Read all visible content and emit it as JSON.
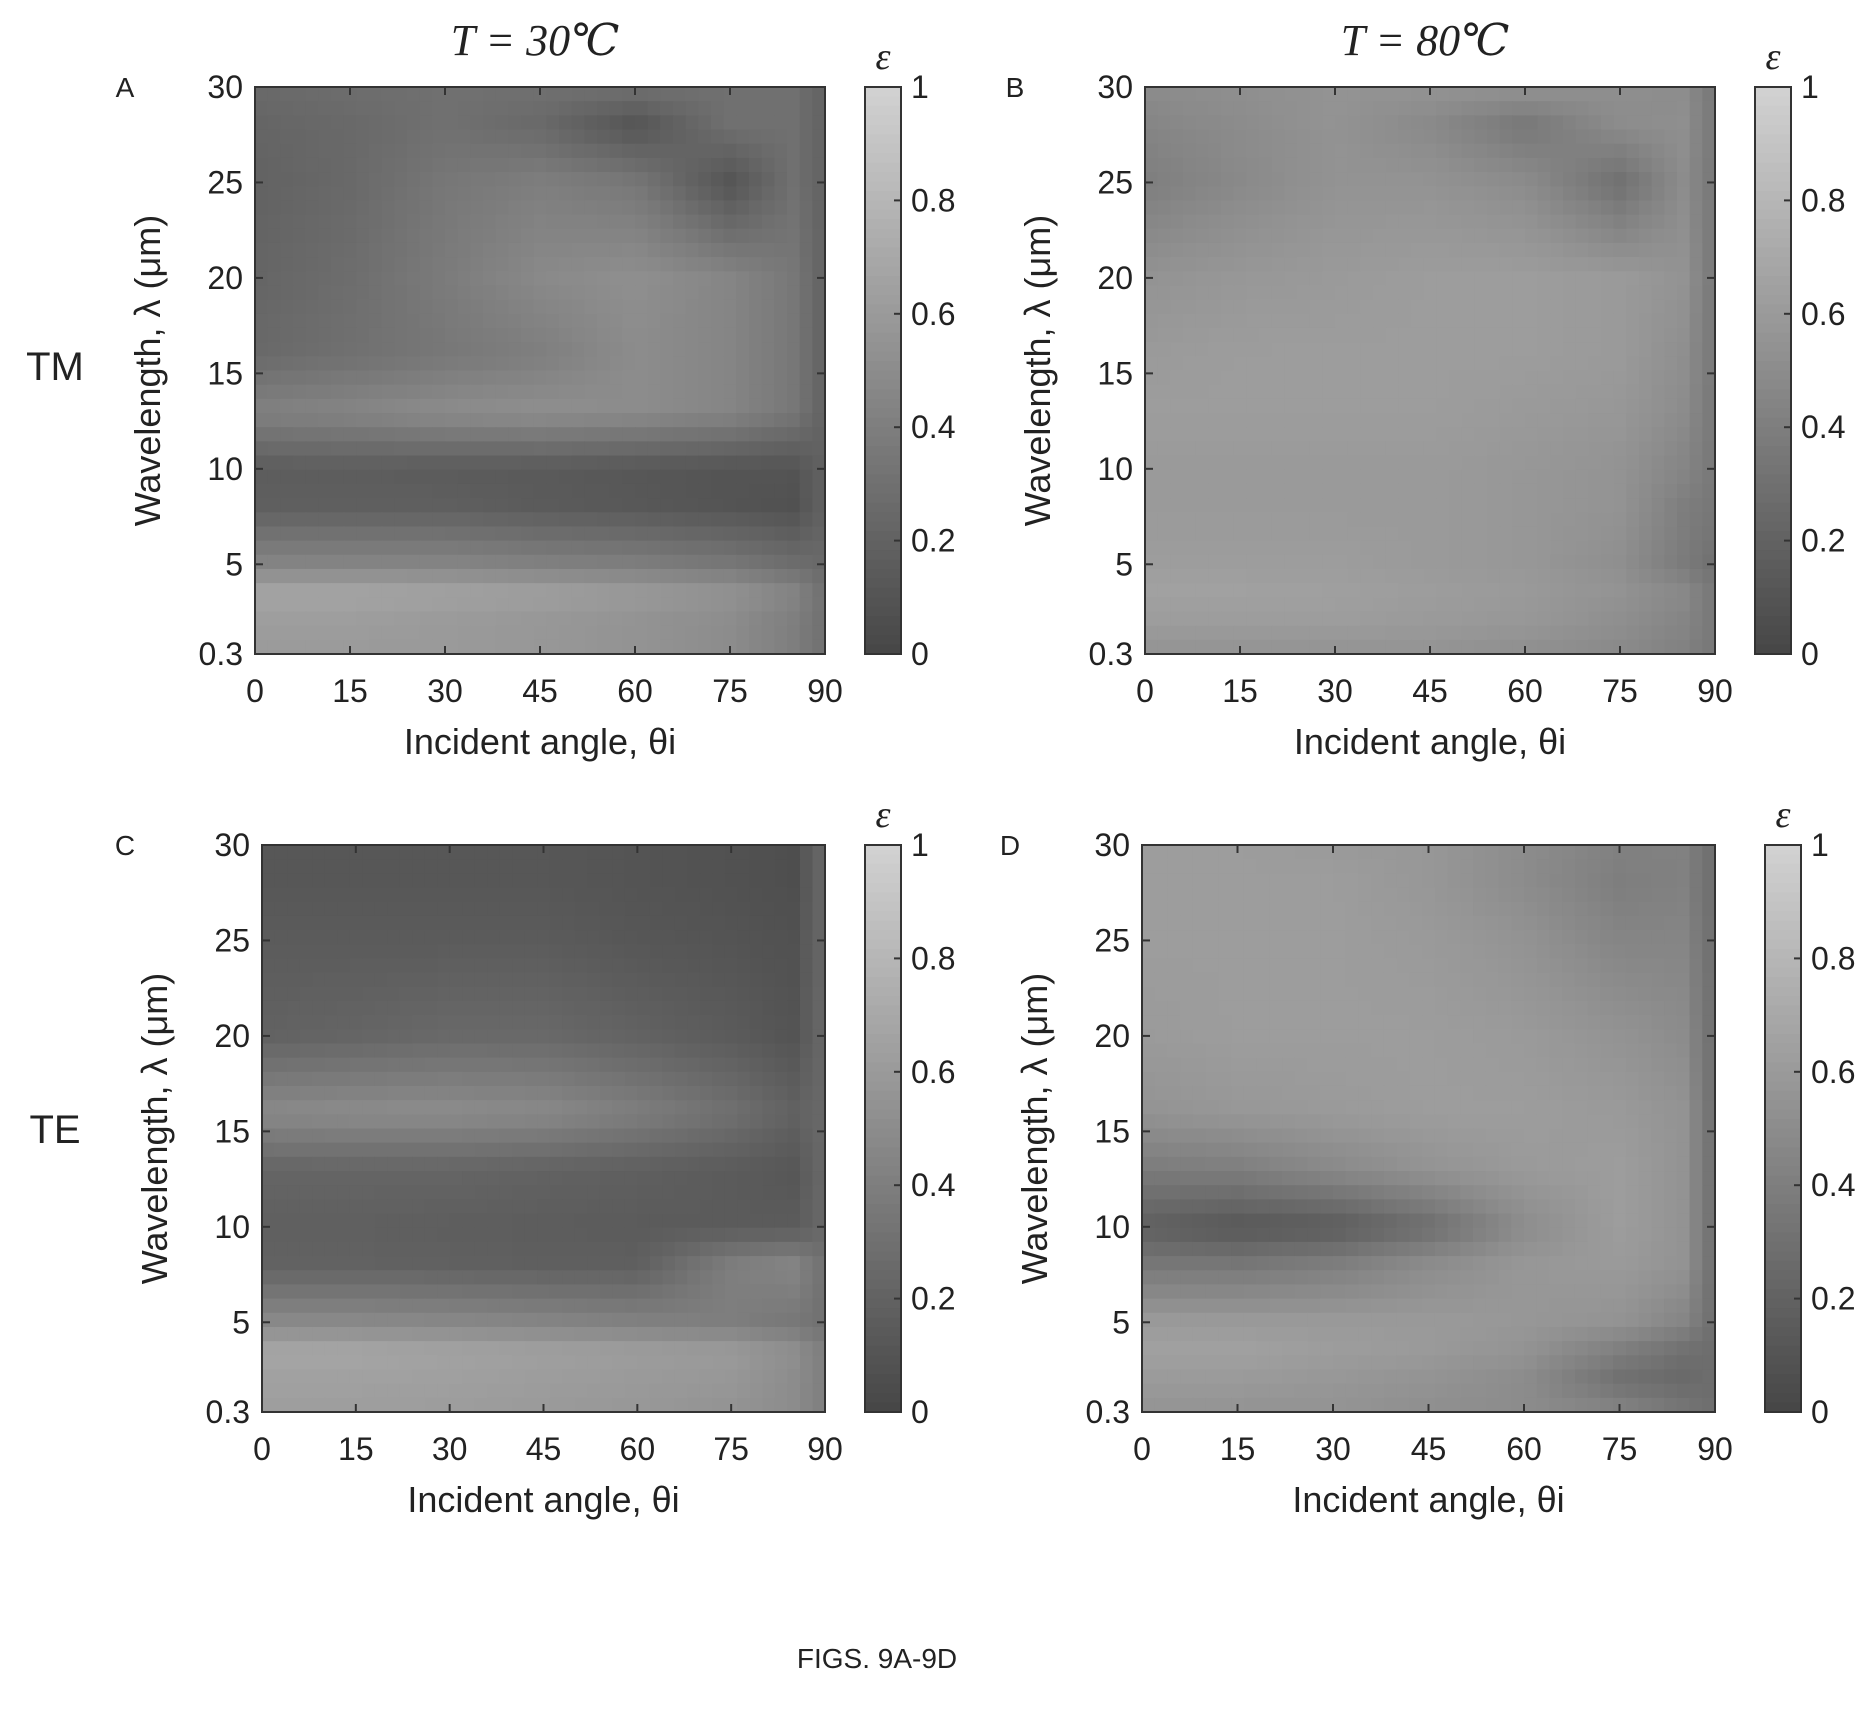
{
  "figure": {
    "caption": "FIGS. 9A-9D",
    "column_headers": [
      "T = 30℃",
      "T = 80℃"
    ],
    "row_labels": [
      "TM",
      "TE"
    ]
  },
  "chart_data": [
    {
      "type": "heatmap",
      "panel_label": "A",
      "xlabel": "Incident angle, θi",
      "ylabel": "Wavelength, λ (μm)",
      "x_ticks": [
        0,
        15,
        30,
        45,
        60,
        75,
        90
      ],
      "y_ticks": [
        0.3,
        5,
        10,
        15,
        20,
        25,
        30
      ],
      "xlim": [
        0,
        90
      ],
      "ylim": [
        0.3,
        30
      ],
      "colorbar": {
        "label": "ε",
        "ticks": [
          0,
          0.2,
          0.4,
          0.6,
          0.8,
          1
        ],
        "range": [
          0,
          1
        ]
      },
      "x_samples": [
        0,
        15,
        30,
        45,
        60,
        75,
        85,
        90
      ],
      "y_samples": [
        0.3,
        2,
        3.5,
        5,
        8,
        10,
        13,
        16,
        20,
        25,
        28,
        30
      ],
      "values": [
        [
          0.6,
          0.6,
          0.6,
          0.58,
          0.55,
          0.5,
          0.4,
          0.3
        ],
        [
          0.62,
          0.62,
          0.6,
          0.58,
          0.55,
          0.5,
          0.4,
          0.3
        ],
        [
          0.68,
          0.68,
          0.66,
          0.64,
          0.6,
          0.55,
          0.45,
          0.3
        ],
        [
          0.45,
          0.45,
          0.45,
          0.42,
          0.4,
          0.35,
          0.28,
          0.25
        ],
        [
          0.18,
          0.18,
          0.18,
          0.15,
          0.13,
          0.1,
          0.08,
          0.2
        ],
        [
          0.16,
          0.16,
          0.15,
          0.14,
          0.12,
          0.1,
          0.1,
          0.2
        ],
        [
          0.42,
          0.45,
          0.5,
          0.52,
          0.5,
          0.45,
          0.35,
          0.2
        ],
        [
          0.25,
          0.3,
          0.35,
          0.4,
          0.5,
          0.45,
          0.35,
          0.2
        ],
        [
          0.22,
          0.28,
          0.38,
          0.48,
          0.52,
          0.45,
          0.35,
          0.2
        ],
        [
          0.2,
          0.25,
          0.35,
          0.4,
          0.35,
          0.1,
          0.3,
          0.2
        ],
        [
          0.22,
          0.25,
          0.3,
          0.25,
          0.1,
          0.3,
          0.3,
          0.2
        ],
        [
          0.25,
          0.28,
          0.3,
          0.3,
          0.3,
          0.3,
          0.3,
          0.2
        ]
      ]
    },
    {
      "type": "heatmap",
      "panel_label": "B",
      "xlabel": "Incident angle, θi",
      "ylabel": "Wavelength, λ (μm)",
      "x_ticks": [
        0,
        15,
        30,
        45,
        60,
        75,
        90
      ],
      "y_ticks": [
        0.3,
        5,
        10,
        15,
        20,
        25,
        30
      ],
      "xlim": [
        0,
        90
      ],
      "ylim": [
        0.3,
        30
      ],
      "colorbar": {
        "label": "ε",
        "ticks": [
          0,
          0.2,
          0.4,
          0.6,
          0.8,
          1
        ],
        "range": [
          0,
          1
        ]
      },
      "x_samples": [
        0,
        15,
        30,
        45,
        60,
        75,
        85,
        90
      ],
      "y_samples": [
        0.3,
        2,
        3.5,
        5,
        8,
        10,
        13,
        16,
        20,
        25,
        28,
        30
      ],
      "values": [
        [
          0.55,
          0.55,
          0.55,
          0.55,
          0.52,
          0.48,
          0.42,
          0.35
        ],
        [
          0.62,
          0.62,
          0.62,
          0.6,
          0.58,
          0.52,
          0.45,
          0.35
        ],
        [
          0.65,
          0.65,
          0.64,
          0.62,
          0.6,
          0.55,
          0.48,
          0.35
        ],
        [
          0.62,
          0.62,
          0.62,
          0.6,
          0.58,
          0.52,
          0.38,
          0.3
        ],
        [
          0.6,
          0.6,
          0.6,
          0.6,
          0.58,
          0.55,
          0.4,
          0.35
        ],
        [
          0.6,
          0.6,
          0.6,
          0.6,
          0.58,
          0.55,
          0.45,
          0.35
        ],
        [
          0.62,
          0.62,
          0.62,
          0.62,
          0.6,
          0.58,
          0.5,
          0.35
        ],
        [
          0.6,
          0.62,
          0.62,
          0.62,
          0.62,
          0.6,
          0.52,
          0.35
        ],
        [
          0.55,
          0.58,
          0.6,
          0.62,
          0.62,
          0.6,
          0.55,
          0.35
        ],
        [
          0.4,
          0.48,
          0.55,
          0.55,
          0.5,
          0.3,
          0.5,
          0.35
        ],
        [
          0.45,
          0.5,
          0.55,
          0.48,
          0.35,
          0.5,
          0.52,
          0.35
        ],
        [
          0.5,
          0.52,
          0.55,
          0.55,
          0.55,
          0.52,
          0.5,
          0.35
        ]
      ]
    },
    {
      "type": "heatmap",
      "panel_label": "C",
      "xlabel": "Incident angle, θi",
      "ylabel": "Wavelength, λ (μm)",
      "x_ticks": [
        0,
        15,
        30,
        45,
        60,
        75,
        90
      ],
      "y_ticks": [
        0.3,
        5,
        10,
        15,
        20,
        25,
        30
      ],
      "xlim": [
        0,
        90
      ],
      "ylim": [
        0.3,
        30
      ],
      "colorbar": {
        "label": "ε",
        "ticks": [
          0,
          0.2,
          0.4,
          0.6,
          0.8,
          1
        ],
        "range": [
          0,
          1
        ]
      },
      "x_samples": [
        0,
        15,
        30,
        45,
        60,
        75,
        85,
        90
      ],
      "y_samples": [
        0.3,
        2,
        3.5,
        5,
        8,
        10,
        13,
        16,
        20,
        25,
        28,
        30
      ],
      "values": [
        [
          0.62,
          0.62,
          0.62,
          0.6,
          0.58,
          0.55,
          0.5,
          0.4
        ],
        [
          0.65,
          0.65,
          0.64,
          0.62,
          0.6,
          0.58,
          0.5,
          0.4
        ],
        [
          0.68,
          0.68,
          0.66,
          0.64,
          0.62,
          0.6,
          0.52,
          0.4
        ],
        [
          0.48,
          0.48,
          0.47,
          0.45,
          0.42,
          0.4,
          0.35,
          0.3
        ],
        [
          0.2,
          0.2,
          0.19,
          0.18,
          0.18,
          0.4,
          0.45,
          0.3
        ],
        [
          0.18,
          0.18,
          0.17,
          0.16,
          0.15,
          0.15,
          0.15,
          0.25
        ],
        [
          0.22,
          0.22,
          0.22,
          0.2,
          0.18,
          0.15,
          0.12,
          0.25
        ],
        [
          0.48,
          0.5,
          0.5,
          0.48,
          0.4,
          0.3,
          0.2,
          0.25
        ],
        [
          0.2,
          0.22,
          0.25,
          0.25,
          0.2,
          0.15,
          0.1,
          0.25
        ],
        [
          0.15,
          0.15,
          0.15,
          0.15,
          0.12,
          0.1,
          0.08,
          0.25
        ],
        [
          0.12,
          0.12,
          0.12,
          0.12,
          0.1,
          0.08,
          0.06,
          0.25
        ],
        [
          0.12,
          0.12,
          0.12,
          0.12,
          0.1,
          0.08,
          0.06,
          0.25
        ]
      ]
    },
    {
      "type": "heatmap",
      "panel_label": "D",
      "xlabel": "Incident angle, θi",
      "ylabel": "Wavelength, λ (μm)",
      "x_ticks": [
        0,
        15,
        30,
        45,
        60,
        75,
        90
      ],
      "y_ticks": [
        0.3,
        5,
        10,
        15,
        20,
        25,
        30
      ],
      "xlim": [
        0,
        90
      ],
      "ylim": [
        0.3,
        30
      ],
      "colorbar": {
        "label": "ε",
        "ticks": [
          0,
          0.2,
          0.4,
          0.6,
          0.8,
          1
        ],
        "range": [
          0,
          1
        ]
      },
      "x_samples": [
        0,
        15,
        30,
        45,
        60,
        75,
        85,
        90
      ],
      "y_samples": [
        0.3,
        2,
        3.5,
        5,
        8,
        10,
        13,
        16,
        20,
        25,
        28,
        30
      ],
      "values": [
        [
          0.55,
          0.55,
          0.55,
          0.52,
          0.5,
          0.45,
          0.35,
          0.28
        ],
        [
          0.6,
          0.6,
          0.58,
          0.55,
          0.5,
          0.3,
          0.25,
          0.28
        ],
        [
          0.65,
          0.65,
          0.62,
          0.6,
          0.55,
          0.4,
          0.3,
          0.28
        ],
        [
          0.6,
          0.6,
          0.6,
          0.6,
          0.58,
          0.55,
          0.45,
          0.28
        ],
        [
          0.35,
          0.35,
          0.4,
          0.5,
          0.58,
          0.6,
          0.55,
          0.28
        ],
        [
          0.18,
          0.12,
          0.15,
          0.28,
          0.5,
          0.62,
          0.55,
          0.28
        ],
        [
          0.38,
          0.4,
          0.48,
          0.55,
          0.6,
          0.62,
          0.55,
          0.28
        ],
        [
          0.55,
          0.58,
          0.6,
          0.62,
          0.62,
          0.6,
          0.55,
          0.28
        ],
        [
          0.6,
          0.62,
          0.62,
          0.62,
          0.6,
          0.55,
          0.5,
          0.28
        ],
        [
          0.62,
          0.62,
          0.62,
          0.6,
          0.55,
          0.45,
          0.45,
          0.28
        ],
        [
          0.62,
          0.62,
          0.62,
          0.58,
          0.5,
          0.4,
          0.42,
          0.28
        ],
        [
          0.62,
          0.62,
          0.6,
          0.58,
          0.5,
          0.42,
          0.42,
          0.28
        ]
      ]
    }
  ]
}
